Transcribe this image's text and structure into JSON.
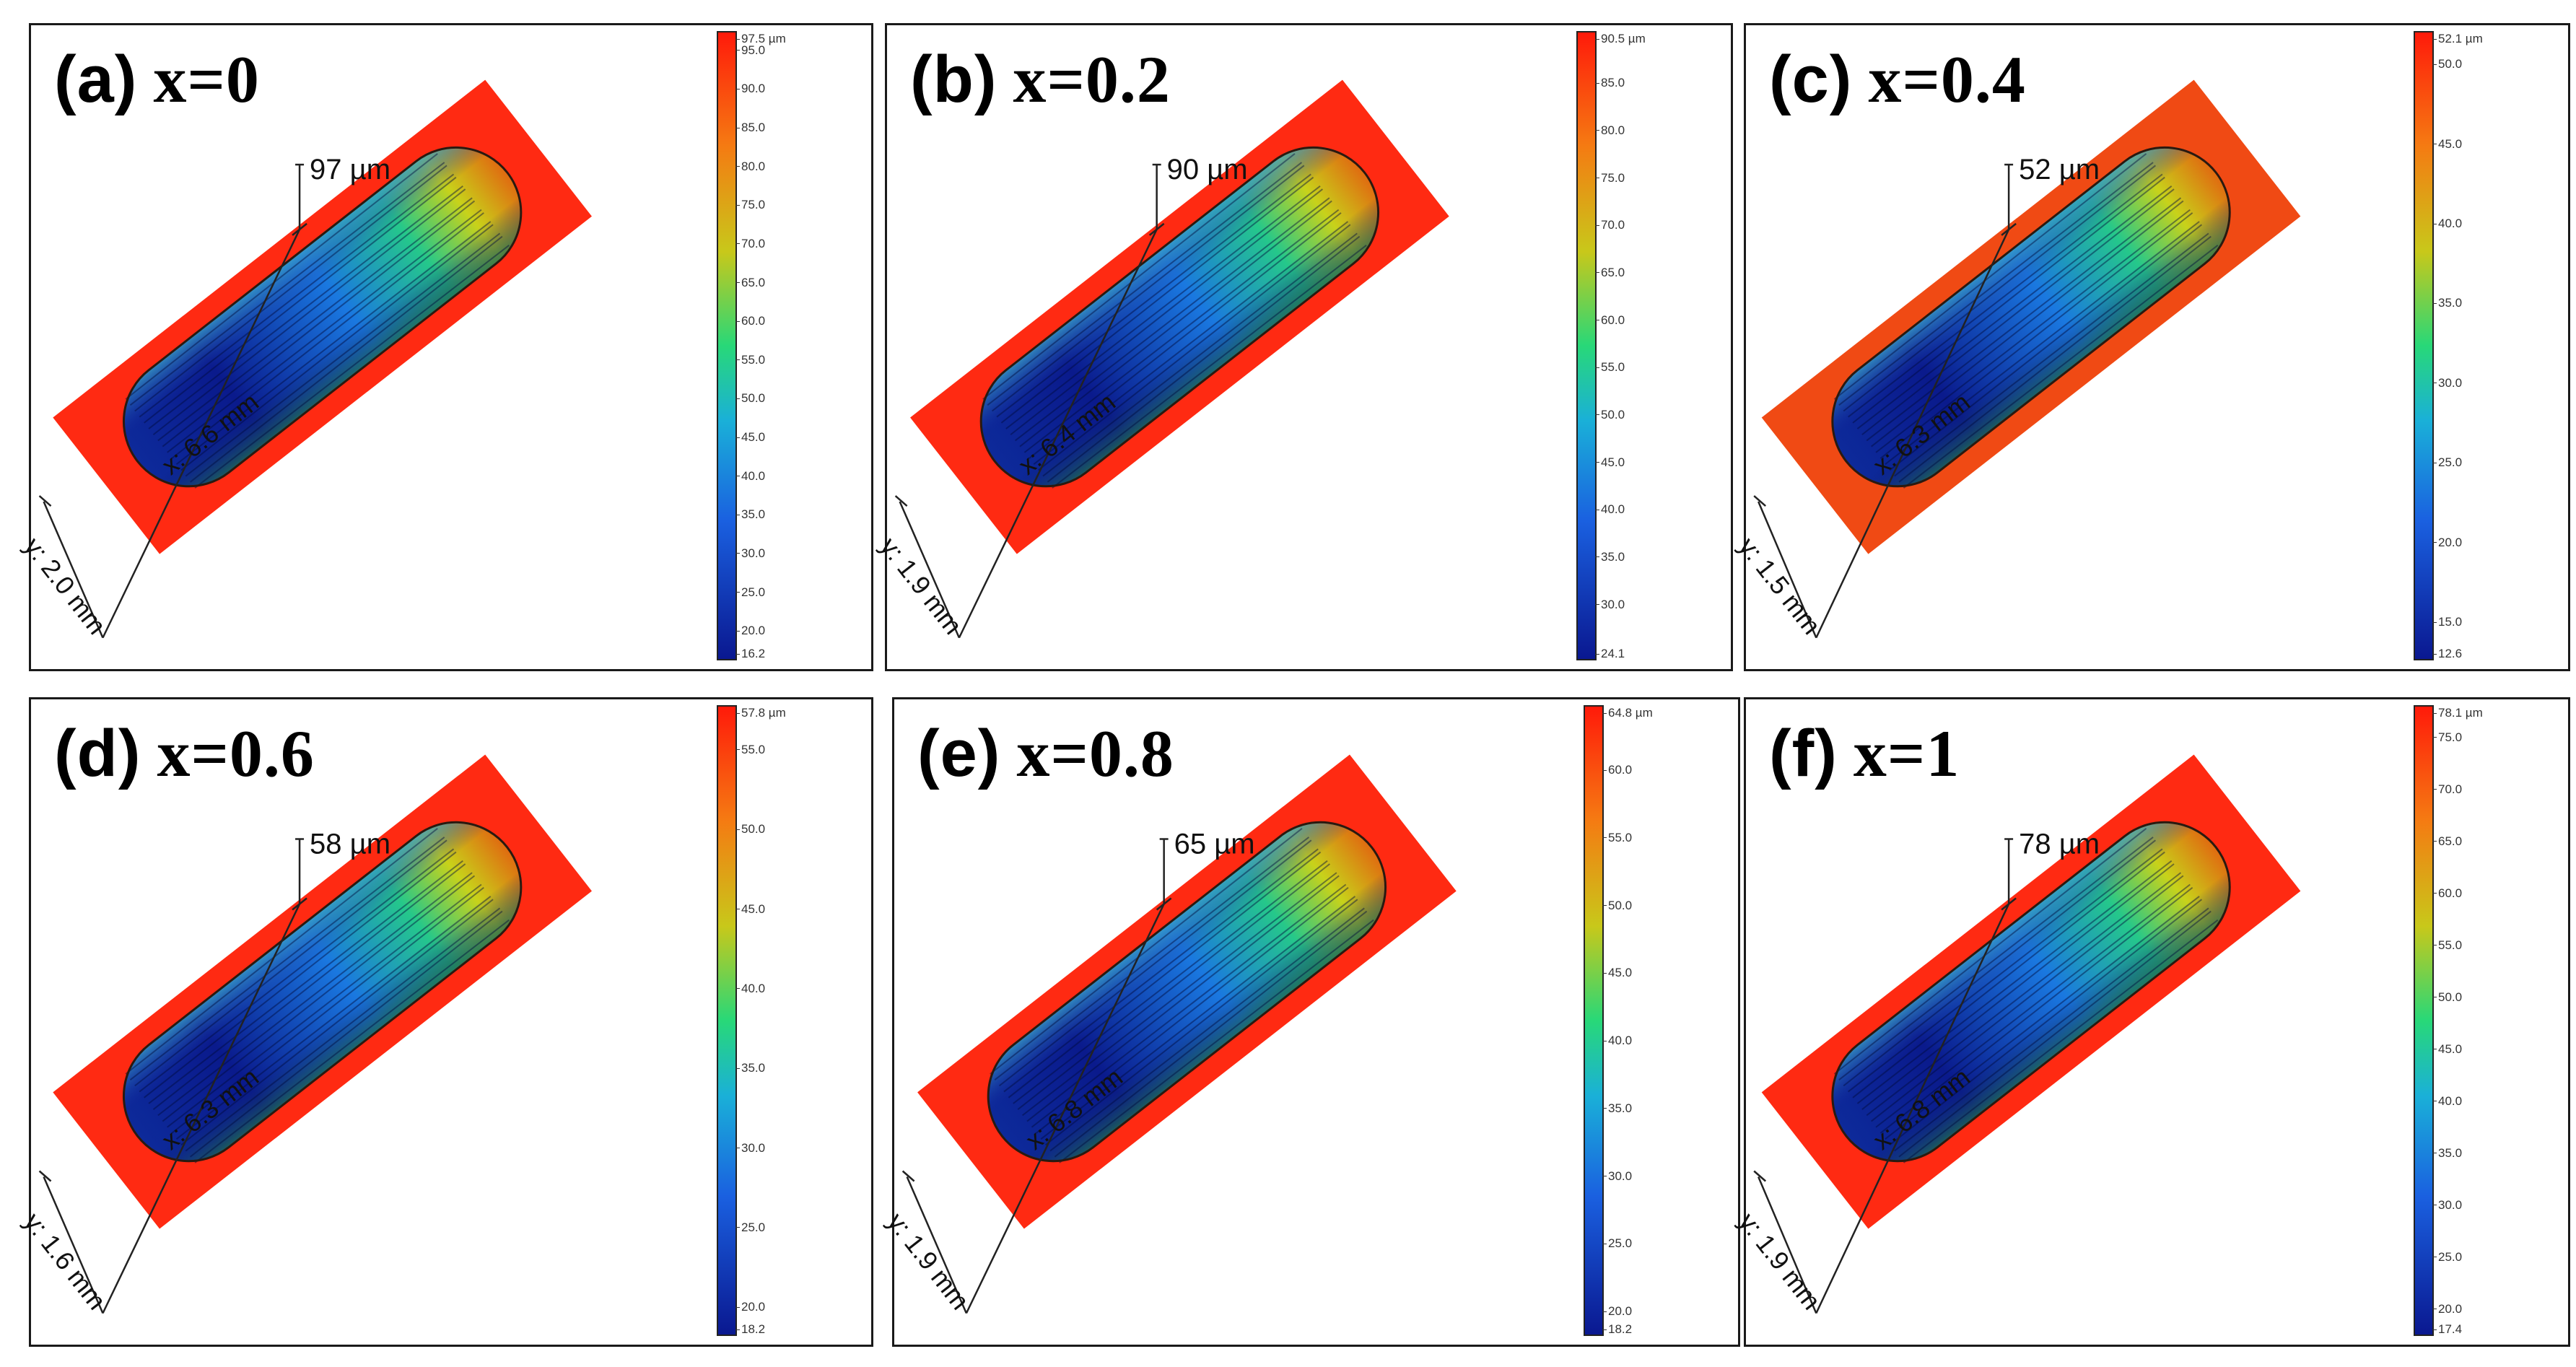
{
  "panels": [
    {
      "label": "(a)",
      "composition": "x=0",
      "x_dim": "x: 6.6 mm",
      "y_dim": "y: 2.0 mm",
      "depth": "97 µm",
      "scale_max": "97.5 µm",
      "scale_min": "16.2",
      "ticks": [
        "95.0",
        "90.0",
        "85.0",
        "80.0",
        "75.0",
        "70.0",
        "65.0",
        "60.0",
        "55.0",
        "50.0",
        "45.0",
        "40.0",
        "35.0",
        "30.0",
        "25.0",
        "20.0"
      ],
      "range": [
        16.2,
        97.5
      ]
    },
    {
      "label": "(b)",
      "composition": "x=0.2",
      "x_dim": "x: 6.4 mm",
      "y_dim": "y: 1.9 mm",
      "depth": "90 µm",
      "scale_max": "90.5 µm",
      "scale_min": "24.1",
      "ticks": [
        "85.0",
        "80.0",
        "75.0",
        "70.0",
        "65.0",
        "60.0",
        "55.0",
        "50.0",
        "45.0",
        "40.0",
        "35.0",
        "30.0"
      ],
      "range": [
        24.1,
        90.5
      ]
    },
    {
      "label": "(c)",
      "composition": "x=0.4",
      "x_dim": "x: 6.3 mm",
      "y_dim": "y: 1.5 mm",
      "depth": "52 µm",
      "scale_max": "52.1 µm",
      "scale_min": "12.6",
      "ticks": [
        "50.0",
        "45.0",
        "40.0",
        "35.0",
        "30.0",
        "25.0",
        "20.0",
        "15.0"
      ],
      "range": [
        12.6,
        52.1
      ]
    },
    {
      "label": "(d)",
      "composition": "x=0.6",
      "x_dim": "x: 6.3 mm",
      "y_dim": "y: 1.6 mm",
      "depth": "58 µm",
      "scale_max": "57.8 µm",
      "scale_min": "18.2",
      "ticks": [
        "55.0",
        "50.0",
        "45.0",
        "40.0",
        "35.0",
        "30.0",
        "25.0",
        "20.0"
      ],
      "range": [
        18.2,
        57.8
      ]
    },
    {
      "label": "(e)",
      "composition": "x=0.8",
      "x_dim": "x: 6.8 mm",
      "y_dim": "y: 1.9 mm",
      "depth": "65 µm",
      "scale_max": "64.8 µm",
      "scale_min": "18.2",
      "ticks": [
        "60.0",
        "55.0",
        "50.0",
        "45.0",
        "40.0",
        "35.0",
        "30.0",
        "25.0",
        "20.0"
      ],
      "range": [
        18.2,
        64.8
      ]
    },
    {
      "label": "(f)",
      "composition": "x=1",
      "x_dim": "x: 6.8 mm",
      "y_dim": "y: 1.9 mm",
      "depth": "78 µm",
      "scale_max": "78.1 µm",
      "scale_min": "17.4",
      "ticks": [
        "75.0",
        "70.0",
        "65.0",
        "60.0",
        "55.0",
        "50.0",
        "45.0",
        "40.0",
        "35.0",
        "30.0",
        "25.0",
        "20.0"
      ],
      "range": [
        17.4,
        78.1
      ]
    }
  ],
  "colors": {
    "substrate": "#ff2a12",
    "substrate_c": "#f04a14",
    "deep": "#0a1a8c",
    "mid": "#1a78e0",
    "shallow": "#25c88a",
    "rim": "#c8d21a"
  }
}
